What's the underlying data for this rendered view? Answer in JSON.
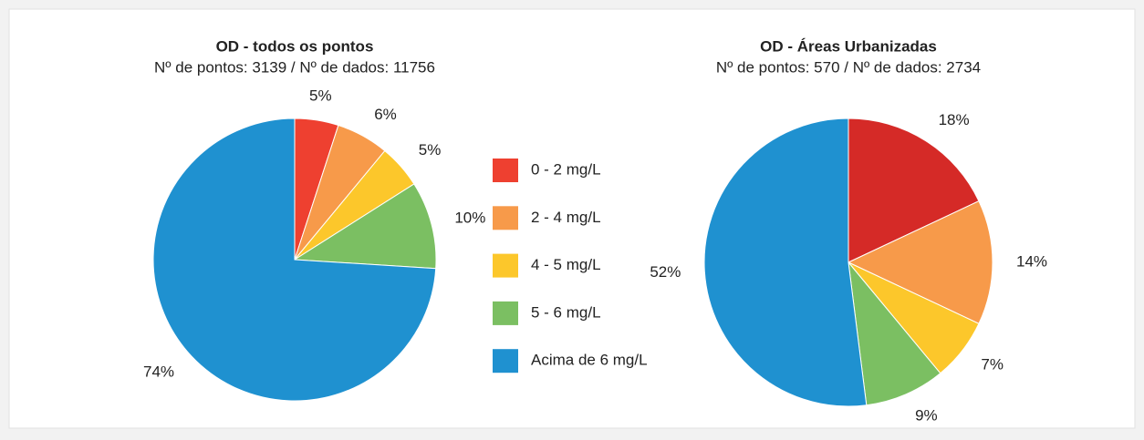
{
  "chart_data": [
    {
      "type": "pie",
      "title": "OD - todos os pontos",
      "subtitle": "Nº de pontos: 3139 / Nº de dados: 11756",
      "categories": [
        "0 - 2 mg/L",
        "2 - 4 mg/L",
        "4 - 5 mg/L",
        "5 - 6 mg/L",
        "Acima de 6 mg/L"
      ],
      "values": [
        5,
        6,
        5,
        10,
        74
      ],
      "value_labels": [
        "5%",
        "6%",
        "5%",
        "10%",
        "74%"
      ],
      "colors": [
        "#ee4030",
        "#f79a4a",
        "#fcc72b",
        "#7bbf62",
        "#1f91d0"
      ],
      "legend": "right"
    },
    {
      "type": "pie",
      "title": "OD - Áreas Urbanizadas",
      "subtitle": "Nº de pontos: 570 / Nº de dados: 2734",
      "categories": [
        "0 - 2 mg/L",
        "2 - 4 mg/L",
        "4 - 5 mg/L",
        "5 - 6 mg/L",
        "Acima de 6 mg/L"
      ],
      "values": [
        18,
        14,
        7,
        9,
        52
      ],
      "value_labels": [
        "18%",
        "14%",
        "7%",
        "9%",
        "52%"
      ],
      "colors": [
        "#d52a27",
        "#f79a4a",
        "#fcc72b",
        "#7bbf62",
        "#1f91d0"
      ]
    }
  ]
}
